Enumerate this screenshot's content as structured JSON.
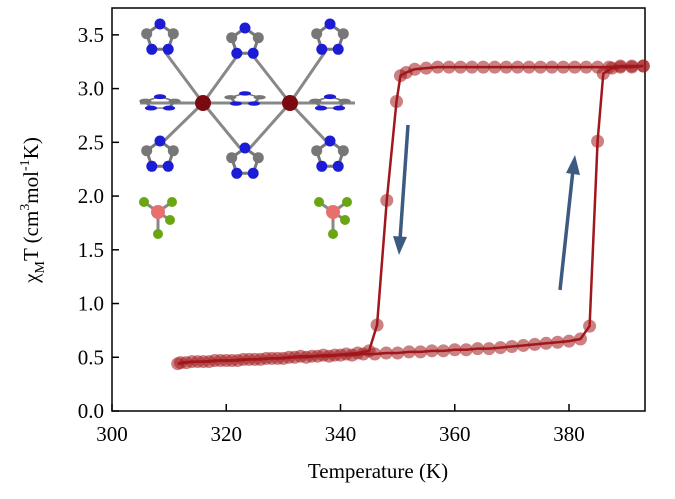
{
  "chart_data": {
    "type": "scatter",
    "connect": true,
    "xlabel": "Temperature (K)",
    "ylabel": [
      "χ",
      "M",
      "T (cm",
      "3",
      "mol",
      "-1",
      "K)"
    ],
    "xlim": [
      300,
      393.3
    ],
    "ylim": [
      0,
      3.75
    ],
    "xticks": [
      300,
      320,
      340,
      360,
      380
    ],
    "yticks": [
      {
        "value": 0,
        "label": "0.0"
      },
      {
        "value": 0.5,
        "label": "0.5"
      },
      {
        "value": 1,
        "label": "1.0"
      },
      {
        "value": 1.5,
        "label": "1.5"
      },
      {
        "value": 2,
        "label": "2.0"
      },
      {
        "value": 2.5,
        "label": "2.5"
      },
      {
        "value": 3,
        "label": "3.0"
      },
      {
        "value": 3.5,
        "label": "3.5"
      }
    ],
    "series": [
      {
        "color": "#a0171c",
        "x": [
          312,
          314,
          316,
          318,
          320,
          322,
          324,
          326,
          328,
          330,
          332,
          334,
          336,
          338,
          340,
          342,
          344,
          346,
          348,
          350,
          352,
          354,
          356,
          358,
          360,
          362,
          364,
          366,
          368,
          370,
          372,
          374,
          376,
          378,
          380,
          382,
          383.6,
          385,
          386,
          387.5,
          389,
          391,
          393
        ],
        "values": [
          0.45,
          0.46,
          0.46,
          0.47,
          0.47,
          0.47,
          0.48,
          0.48,
          0.49,
          0.49,
          0.5,
          0.5,
          0.51,
          0.51,
          0.52,
          0.52,
          0.53,
          0.53,
          0.54,
          0.54,
          0.55,
          0.55,
          0.56,
          0.56,
          0.57,
          0.57,
          0.58,
          0.58,
          0.59,
          0.6,
          0.61,
          0.62,
          0.63,
          0.64,
          0.65,
          0.67,
          0.79,
          2.51,
          3.14,
          3.19,
          3.2,
          3.2,
          3.21
        ]
      },
      {
        "color": "#a0171c",
        "x": [
          393,
          391,
          389,
          387,
          385,
          383,
          381,
          379,
          377,
          375,
          373,
          371,
          369,
          367,
          365,
          363,
          361,
          359,
          357,
          355,
          353,
          351.5,
          350.5,
          349.8,
          348.1,
          346.4,
          345,
          343,
          341,
          339,
          337,
          335,
          333,
          331,
          329,
          327,
          325,
          323,
          321,
          319,
          317,
          315,
          313,
          311.5
        ],
        "values": [
          3.21,
          3.21,
          3.21,
          3.2,
          3.2,
          3.2,
          3.2,
          3.2,
          3.2,
          3.2,
          3.2,
          3.2,
          3.2,
          3.2,
          3.2,
          3.2,
          3.2,
          3.2,
          3.2,
          3.19,
          3.18,
          3.15,
          3.12,
          2.88,
          1.96,
          0.8,
          0.56,
          0.54,
          0.53,
          0.52,
          0.52,
          0.51,
          0.51,
          0.5,
          0.49,
          0.49,
          0.48,
          0.48,
          0.47,
          0.47,
          0.46,
          0.46,
          0.45,
          0.44
        ]
      }
    ]
  }
}
